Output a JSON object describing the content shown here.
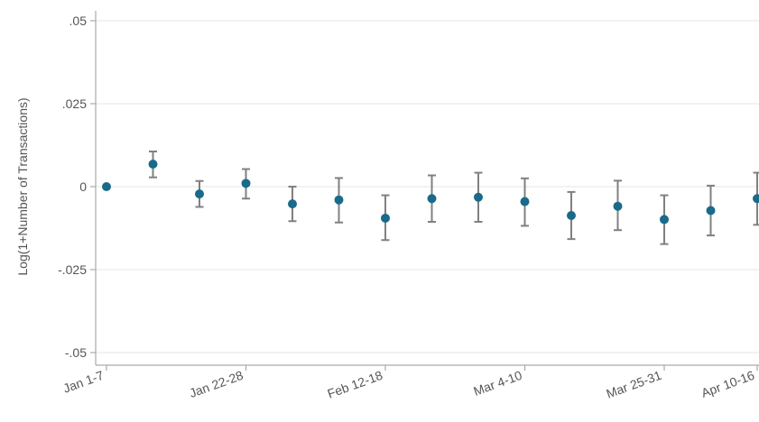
{
  "chart_data": {
    "type": "scatter",
    "title": "",
    "xlabel": "",
    "ylabel": "Log(1+Number of Transactions)",
    "ylim": [
      -0.05,
      0.05
    ],
    "y_ticks": [
      {
        "value": 0.05,
        "label": ".05"
      },
      {
        "value": 0.025,
        "label": ".025"
      },
      {
        "value": 0,
        "label": "0"
      },
      {
        "value": -0.025,
        "label": "-.025"
      },
      {
        "value": -0.05,
        "label": "-.05"
      }
    ],
    "x_ticks": [
      {
        "index": 0,
        "label": "Jan 1-7"
      },
      {
        "index": 3,
        "label": "Jan 22-28"
      },
      {
        "index": 6,
        "label": "Feb 12-18"
      },
      {
        "index": 9,
        "label": "Mar 4-10"
      },
      {
        "index": 12,
        "label": "Mar 25-31"
      },
      {
        "index": 14,
        "label": "Apr 10-16"
      }
    ],
    "grid": true,
    "legend": "none",
    "colors": {
      "point": "#1a6a8a",
      "error_bar": "#808080",
      "grid": "#e6e6e6",
      "axis": "#aaaaaa"
    },
    "series": [
      {
        "points": [
          {
            "x": 0,
            "y": 0.0,
            "lo": 0.0,
            "hi": 0.0
          },
          {
            "x": 1,
            "y": 0.0068,
            "lo": 0.0028,
            "hi": 0.0106
          },
          {
            "x": 2,
            "y": -0.0022,
            "lo": -0.0061,
            "hi": 0.0017
          },
          {
            "x": 3,
            "y": 0.001,
            "lo": -0.0036,
            "hi": 0.0053
          },
          {
            "x": 4,
            "y": -0.0052,
            "lo": -0.0104,
            "hi": 0.0
          },
          {
            "x": 5,
            "y": -0.004,
            "lo": -0.0108,
            "hi": 0.0026
          },
          {
            "x": 6,
            "y": -0.0095,
            "lo": -0.0161,
            "hi": -0.0026
          },
          {
            "x": 7,
            "y": -0.0036,
            "lo": -0.0106,
            "hi": 0.0034
          },
          {
            "x": 8,
            "y": -0.0032,
            "lo": -0.0106,
            "hi": 0.0042
          },
          {
            "x": 9,
            "y": -0.0045,
            "lo": -0.0118,
            "hi": 0.0025
          },
          {
            "x": 10,
            "y": -0.0087,
            "lo": -0.0158,
            "hi": -0.0016
          },
          {
            "x": 11,
            "y": -0.0059,
            "lo": -0.0131,
            "hi": 0.0018
          },
          {
            "x": 12,
            "y": -0.0099,
            "lo": -0.0173,
            "hi": -0.0026
          },
          {
            "x": 13,
            "y": -0.0072,
            "lo": -0.0147,
            "hi": 0.0003
          },
          {
            "x": 14,
            "y": -0.0036,
            "lo": -0.0115,
            "hi": 0.0042
          }
        ]
      }
    ]
  }
}
